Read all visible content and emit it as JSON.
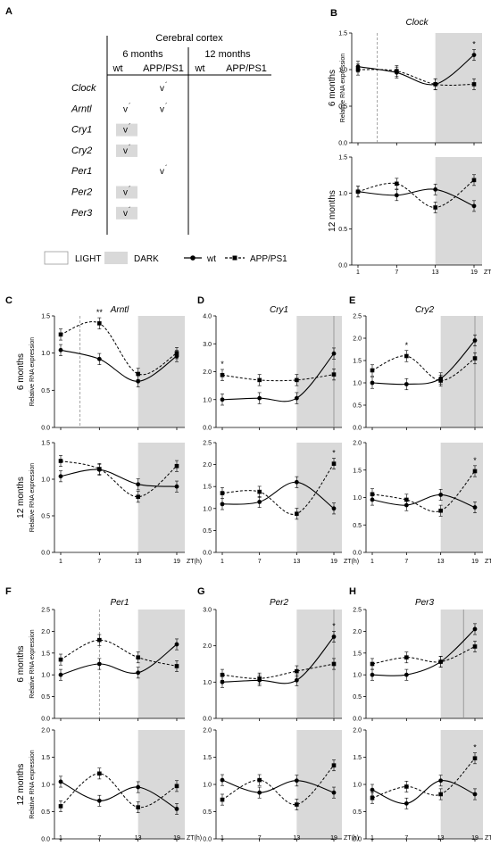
{
  "panel_a": {
    "letter": "A",
    "header": "Cerebral cortex",
    "age_6": "6 months",
    "age_12": "12 months",
    "col_wt": "wt",
    "col_app": "APP/PS1",
    "genes": [
      "Clock",
      "Arntl",
      "Cry1",
      "Cry2",
      "Per1",
      "Per2",
      "Per3"
    ],
    "check": "v",
    "check_sup": "´",
    "marks": [
      {
        "gene": "Clock",
        "col": "app6",
        "shade": false
      },
      {
        "gene": "Arntl",
        "col": "wt6",
        "shade": false
      },
      {
        "gene": "Arntl",
        "col": "app6",
        "shade": false
      },
      {
        "gene": "Cry1",
        "col": "wt6",
        "shade": true
      },
      {
        "gene": "Cry2",
        "col": "wt6",
        "shade": true
      },
      {
        "gene": "Per1",
        "col": "app6",
        "shade": false
      },
      {
        "gene": "Per2",
        "col": "wt6",
        "shade": true
      },
      {
        "gene": "Per3",
        "col": "wt6",
        "shade": true
      }
    ]
  },
  "legend": {
    "light": "LIGHT",
    "dark": "DARK",
    "wt": "wt",
    "app": "APP/PS1"
  },
  "colors": {
    "dark_phase": "#d9d9d9",
    "axis": "#000000",
    "vline": "#8c8c8c"
  },
  "text": {
    "ylabel": "Relative RNA expression",
    "row6": "6 months",
    "row12": "12 months",
    "zt": "ZT(h)"
  },
  "chart_data": [
    {
      "letter": "B",
      "gene": "Clock",
      "type": "line",
      "x": [
        1,
        7,
        13,
        19
      ],
      "top": {
        "ylim": [
          0,
          1.5
        ],
        "ticks": [
          0,
          0.5,
          1.0,
          1.5
        ],
        "wt": [
          1.04,
          0.96,
          0.8,
          1.2
        ],
        "app": [
          1.0,
          0.98,
          0.8,
          0.8
        ],
        "stars": [
          {
            "x": 19,
            "text": "*"
          }
        ],
        "vline": {
          "x": 4,
          "style": "dashed"
        }
      },
      "bot": {
        "ylim": [
          0,
          1.5
        ],
        "ticks": [
          0,
          0.5,
          1.0,
          1.5
        ],
        "wt": [
          1.02,
          0.97,
          1.05,
          0.82
        ],
        "app": [
          1.02,
          1.13,
          0.8,
          1.18
        ],
        "stars": [],
        "vline": null
      }
    },
    {
      "letter": "C",
      "gene": "Arntl",
      "type": "line",
      "x": [
        1,
        7,
        13,
        19
      ],
      "top": {
        "ylim": [
          0,
          1.5
        ],
        "ticks": [
          0,
          0.5,
          1.0,
          1.5
        ],
        "wt": [
          1.04,
          0.92,
          0.62,
          0.96
        ],
        "app": [
          1.25,
          1.4,
          0.72,
          1.0
        ],
        "stars": [
          {
            "x": 7,
            "text": "**"
          }
        ],
        "vline": {
          "x": 4,
          "style": "dashed"
        }
      },
      "bot": {
        "ylim": [
          0,
          1.5
        ],
        "ticks": [
          0,
          0.5,
          1.0,
          1.5
        ],
        "wt": [
          1.04,
          1.13,
          0.93,
          0.9
        ],
        "app": [
          1.25,
          1.14,
          0.76,
          1.18
        ],
        "stars": [],
        "vline": null
      }
    },
    {
      "letter": "D",
      "gene": "Cry1",
      "type": "line",
      "x": [
        1,
        7,
        13,
        19
      ],
      "top": {
        "ylim": [
          0,
          4.0
        ],
        "ticks": [
          0,
          1.0,
          2.0,
          3.0,
          4.0
        ],
        "wt": [
          1.0,
          1.05,
          1.05,
          2.65
        ],
        "app": [
          1.88,
          1.7,
          1.7,
          1.9
        ],
        "stars": [
          {
            "x": 1,
            "text": "*"
          }
        ],
        "vline": {
          "x": 19,
          "style": "solid"
        }
      },
      "bot": {
        "ylim": [
          0,
          2.5
        ],
        "ticks": [
          0,
          0.5,
          1.0,
          1.5,
          2.0,
          2.5
        ],
        "wt": [
          1.1,
          1.15,
          1.6,
          1.0
        ],
        "app": [
          1.35,
          1.38,
          0.88,
          2.02
        ],
        "stars": [
          {
            "x": 19,
            "text": "*"
          }
        ],
        "vline": null
      }
    },
    {
      "letter": "E",
      "gene": "Cry2",
      "type": "line",
      "x": [
        1,
        7,
        13,
        19
      ],
      "top": {
        "ylim": [
          0,
          2.5
        ],
        "ticks": [
          0,
          0.5,
          1.0,
          1.5,
          2.0,
          2.5
        ],
        "wt": [
          1.0,
          0.97,
          1.1,
          1.95
        ],
        "app": [
          1.28,
          1.6,
          1.05,
          1.55
        ],
        "stars": [
          {
            "x": 7,
            "text": "*"
          }
        ],
        "vline": {
          "x": 19,
          "style": "solid"
        }
      },
      "bot": {
        "ylim": [
          0,
          2.0
        ],
        "ticks": [
          0,
          0.5,
          1.0,
          1.5,
          2.0
        ],
        "wt": [
          0.96,
          0.86,
          1.05,
          0.82
        ],
        "app": [
          1.06,
          0.96,
          0.76,
          1.48
        ],
        "stars": [
          {
            "x": 19,
            "text": "*"
          }
        ],
        "vline": null
      }
    },
    {
      "letter": "F",
      "gene": "Per1",
      "type": "line",
      "x": [
        1,
        7,
        13,
        19
      ],
      "top": {
        "ylim": [
          0,
          2.5
        ],
        "ticks": [
          0,
          0.5,
          1.0,
          1.5,
          2.0,
          2.5
        ],
        "wt": [
          1.0,
          1.25,
          1.05,
          1.7
        ],
        "app": [
          1.35,
          1.8,
          1.4,
          1.2
        ],
        "stars": [],
        "vline": {
          "x": 7,
          "style": "dashed"
        }
      },
      "bot": {
        "ylim": [
          0,
          2.0
        ],
        "ticks": [
          0,
          0.5,
          1.0,
          1.5,
          2.0
        ],
        "wt": [
          1.05,
          0.7,
          0.95,
          0.55
        ],
        "app": [
          0.6,
          1.2,
          0.58,
          0.97
        ],
        "stars": [],
        "vline": null
      }
    },
    {
      "letter": "G",
      "gene": "Per2",
      "type": "line",
      "x": [
        1,
        7,
        13,
        19
      ],
      "top": {
        "ylim": [
          0,
          3.0
        ],
        "ticks": [
          0,
          1.0,
          2.0,
          3.0
        ],
        "wt": [
          1.0,
          1.05,
          1.05,
          2.25
        ],
        "app": [
          1.2,
          1.1,
          1.3,
          1.5
        ],
        "stars": [
          {
            "x": 19,
            "text": "*"
          }
        ],
        "vline": {
          "x": 19,
          "style": "solid"
        }
      },
      "bot": {
        "ylim": [
          0,
          2.0
        ],
        "ticks": [
          0,
          0.5,
          1.0,
          1.5,
          2.0
        ],
        "wt": [
          1.08,
          0.85,
          1.07,
          0.85
        ],
        "app": [
          0.72,
          1.08,
          0.63,
          1.35
        ],
        "stars": [],
        "vline": null
      }
    },
    {
      "letter": "H",
      "gene": "Per3",
      "type": "line",
      "x": [
        1,
        7,
        13,
        19
      ],
      "top": {
        "ylim": [
          0,
          2.5
        ],
        "ticks": [
          0,
          0.5,
          1.0,
          1.5,
          2.0,
          2.5
        ],
        "wt": [
          1.0,
          1.0,
          1.3,
          2.05
        ],
        "app": [
          1.25,
          1.4,
          1.3,
          1.65
        ],
        "stars": [],
        "vline": {
          "x": 17,
          "style": "solid"
        }
      },
      "bot": {
        "ylim": [
          0,
          2.0
        ],
        "ticks": [
          0,
          0.5,
          1.0,
          1.5,
          2.0
        ],
        "wt": [
          0.9,
          0.65,
          1.07,
          0.82
        ],
        "app": [
          0.75,
          0.96,
          0.82,
          1.48
        ],
        "stars": [
          {
            "x": 19,
            "text": "*"
          }
        ],
        "vline": null
      }
    }
  ]
}
